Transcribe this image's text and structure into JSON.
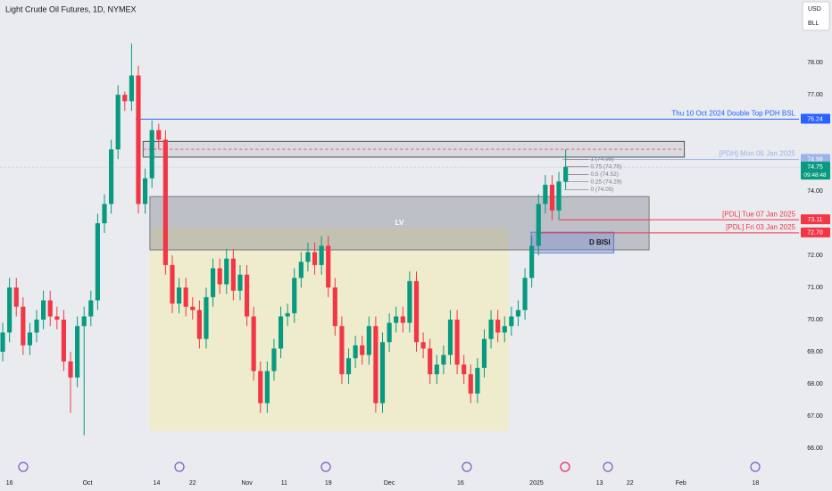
{
  "chart_data": {
    "type": "candlestick",
    "title": "Light Crude Oil Futures, 1D, NYMEX",
    "up_color": "#089981",
    "down_color": "#f23645",
    "open": [
      69.0,
      69.6,
      71.0,
      70.4,
      69.2,
      69.6,
      70.0,
      70.6,
      70.1,
      70.0,
      68.7,
      68.2,
      69.8,
      70.1,
      70.6,
      73.0,
      73.6,
      75.3,
      77.0,
      76.8,
      77.6,
      73.6,
      74.4,
      75.9,
      75.6,
      71.7,
      70.5,
      71.0,
      70.4,
      70.3,
      69.4,
      70.7,
      71.6,
      71.1,
      71.9,
      70.9,
      71.4,
      70.1,
      68.4,
      67.4,
      68.4,
      69.1,
      70.1,
      70.2,
      71.3,
      71.8,
      72.1,
      71.7,
      72.3,
      71.0,
      69.8,
      68.3,
      68.8,
      69.2,
      68.9,
      69.8,
      67.4,
      69.3,
      69.9,
      70.1,
      69.9,
      71.2,
      69.3,
      69.1,
      68.3,
      68.6,
      68.9,
      70.0,
      68.6,
      68.3,
      67.7,
      68.5,
      69.4,
      70.0,
      69.6,
      69.8,
      70.1,
      70.3,
      71.3,
      72.3,
      73.6,
      74.2,
      73.4,
      74.3
    ],
    "high": [
      69.9,
      71.3,
      71.3,
      70.7,
      69.9,
      70.3,
      70.9,
      70.9,
      70.4,
      70.3,
      69.0,
      70.1,
      70.4,
      70.9,
      73.3,
      73.9,
      75.6,
      77.3,
      77.1,
      78.6,
      77.9,
      74.7,
      76.2,
      76.1,
      75.9,
      72.0,
      71.3,
      71.3,
      70.7,
      70.6,
      71.0,
      71.9,
      71.9,
      72.2,
      72.2,
      71.7,
      71.7,
      70.4,
      68.7,
      68.7,
      69.4,
      70.4,
      70.5,
      71.6,
      72.1,
      72.4,
      72.4,
      72.6,
      72.6,
      71.3,
      70.1,
      69.1,
      69.5,
      69.5,
      70.1,
      70.1,
      69.6,
      70.2,
      70.4,
      70.4,
      71.5,
      71.5,
      69.6,
      69.4,
      68.9,
      69.2,
      70.3,
      70.3,
      68.9,
      68.6,
      68.8,
      69.7,
      70.3,
      70.3,
      70.1,
      70.4,
      70.6,
      71.6,
      72.6,
      73.9,
      74.5,
      74.5,
      74.6,
      75.3
    ],
    "low": [
      68.7,
      69.3,
      70.1,
      68.9,
      68.9,
      69.3,
      69.7,
      69.8,
      69.7,
      68.4,
      67.1,
      67.9,
      66.4,
      69.8,
      70.3,
      72.7,
      73.3,
      75.0,
      76.5,
      76.5,
      73.3,
      73.3,
      74.1,
      75.3,
      71.4,
      70.2,
      70.2,
      70.1,
      70.0,
      69.1,
      69.1,
      70.4,
      70.8,
      70.8,
      70.6,
      70.6,
      69.8,
      68.1,
      67.1,
      67.1,
      68.1,
      68.8,
      69.8,
      69.9,
      71.0,
      71.5,
      71.4,
      71.4,
      70.7,
      69.5,
      68.0,
      68.0,
      68.5,
      68.6,
      68.6,
      67.1,
      67.1,
      69.0,
      69.6,
      69.6,
      69.6,
      69.0,
      68.8,
      68.0,
      68.0,
      68.3,
      68.6,
      68.3,
      68.0,
      67.4,
      67.4,
      68.2,
      69.1,
      69.3,
      69.3,
      69.5,
      69.8,
      70.0,
      71.0,
      72.0,
      73.3,
      73.1,
      73.1,
      74.05
    ],
    "close": [
      69.6,
      71.0,
      70.4,
      69.2,
      69.6,
      70.0,
      70.6,
      70.1,
      70.0,
      68.7,
      68.2,
      69.8,
      70.1,
      70.6,
      73.0,
      73.6,
      75.3,
      77.0,
      76.8,
      77.6,
      73.6,
      74.4,
      75.9,
      75.6,
      71.7,
      70.5,
      71.0,
      70.4,
      70.3,
      69.4,
      70.7,
      71.6,
      71.1,
      71.9,
      70.9,
      71.4,
      70.1,
      68.4,
      67.4,
      68.4,
      69.1,
      70.1,
      70.2,
      71.3,
      71.8,
      72.1,
      71.7,
      72.3,
      71.0,
      69.8,
      68.3,
      68.8,
      69.2,
      68.9,
      69.8,
      67.4,
      69.3,
      69.9,
      70.1,
      69.9,
      71.2,
      69.3,
      69.1,
      68.3,
      68.6,
      68.9,
      70.0,
      68.6,
      68.3,
      67.7,
      68.5,
      69.4,
      70.0,
      69.6,
      69.8,
      70.1,
      70.3,
      71.3,
      72.3,
      73.6,
      74.2,
      73.4,
      74.3,
      74.75
    ],
    "xlim": [
      -0.4,
      117.4
    ],
    "xticks": [
      {
        "value": 1,
        "label": "16"
      },
      {
        "value": 12.5,
        "label": "Oct"
      },
      {
        "value": 22.7,
        "label": "14"
      },
      {
        "value": 28,
        "label": "22"
      },
      {
        "value": 36,
        "label": "Nov"
      },
      {
        "value": 41.5,
        "label": "11"
      },
      {
        "value": 48,
        "label": "19"
      },
      {
        "value": 57,
        "label": "Dec"
      },
      {
        "value": 67.5,
        "label": "16"
      },
      {
        "value": 78.7,
        "label": "2025"
      },
      {
        "value": 88,
        "label": "13"
      },
      {
        "value": 92.5,
        "label": "22"
      },
      {
        "value": 100,
        "label": "Feb"
      },
      {
        "value": 111,
        "label": "18"
      }
    ],
    "ylim": [
      65.5,
      79.95
    ],
    "yticks": [
      {
        "value": 66,
        "label": "66.00"
      },
      {
        "value": 67,
        "label": "67.00"
      },
      {
        "value": 68,
        "label": "68.00"
      },
      {
        "value": 69,
        "label": "69.00"
      },
      {
        "value": 70,
        "label": "70.00"
      },
      {
        "value": 71,
        "label": "71.00"
      },
      {
        "value": 72,
        "label": "72.00"
      },
      {
        "value": 74,
        "label": "74.00"
      },
      {
        "value": 77,
        "label": "77.00"
      },
      {
        "value": 78,
        "label": "78.00"
      }
    ],
    "grid": false,
    "last_price": {
      "value": 74.75,
      "label": "74.75",
      "countdown": "09:48:48",
      "color": "#089981"
    },
    "levels": [
      {
        "value": 76.24,
        "label": "76.24",
        "text": "Thu 10 Oct 2024 Double Top PDH BSL",
        "color": "#2962ff",
        "start": 19.6
      },
      {
        "value": 74.99,
        "label": "74.99",
        "text": "[PDH] Mon 06 Jan 2025",
        "color": "#9db3e8",
        "start": 82.5
      },
      {
        "value": 73.11,
        "label": "73.11",
        "text": "[PDL] Tue 07 Jan 2025",
        "color": "#f23645",
        "start": 82.1
      },
      {
        "value": 72.7,
        "label": "72.70",
        "text": "[PDL] Fri 03 Jan 2025",
        "color": "#f23645",
        "start": 78.7
      }
    ],
    "fib": {
      "x": [
        82.8,
        86.4
      ],
      "levels": [
        {
          "value": 74.99,
          "label": "1 (74.99)"
        },
        {
          "value": 74.76,
          "label": "0.75 (74.76)"
        },
        {
          "value": 74.52,
          "label": "0.5 (74.52)"
        },
        {
          "value": 74.29,
          "label": "0.25 (74.29)"
        },
        {
          "value": 74.05,
          "label": "0 (74.05)"
        }
      ]
    },
    "boxes": [
      {
        "x": [
          21.7,
          74.6
        ],
        "y": [
          66.53,
          72.86
        ],
        "fill": "rgba(255,241,118,0.28)",
        "stroke": "none"
      },
      {
        "x": [
          21.7,
          95.3
        ],
        "y": [
          72.17,
          73.83
        ],
        "fill": "rgba(120,123,134,0.38)",
        "stroke": "#787b86",
        "label": "LV"
      },
      {
        "x": [
          77.9,
          90.1
        ],
        "y": [
          72.08,
          72.72
        ],
        "fill": "rgba(91,123,213,0.28)",
        "stroke": "#5b7bd5",
        "label": "D BISI"
      },
      {
        "x": [
          20.7,
          100.5
        ],
        "y": [
          75.06,
          75.55
        ],
        "fill": "rgba(120,123,134,0.15)",
        "stroke": "#555555"
      }
    ]
  },
  "toolbar": {
    "currency": "USD",
    "unit": "BLL"
  }
}
